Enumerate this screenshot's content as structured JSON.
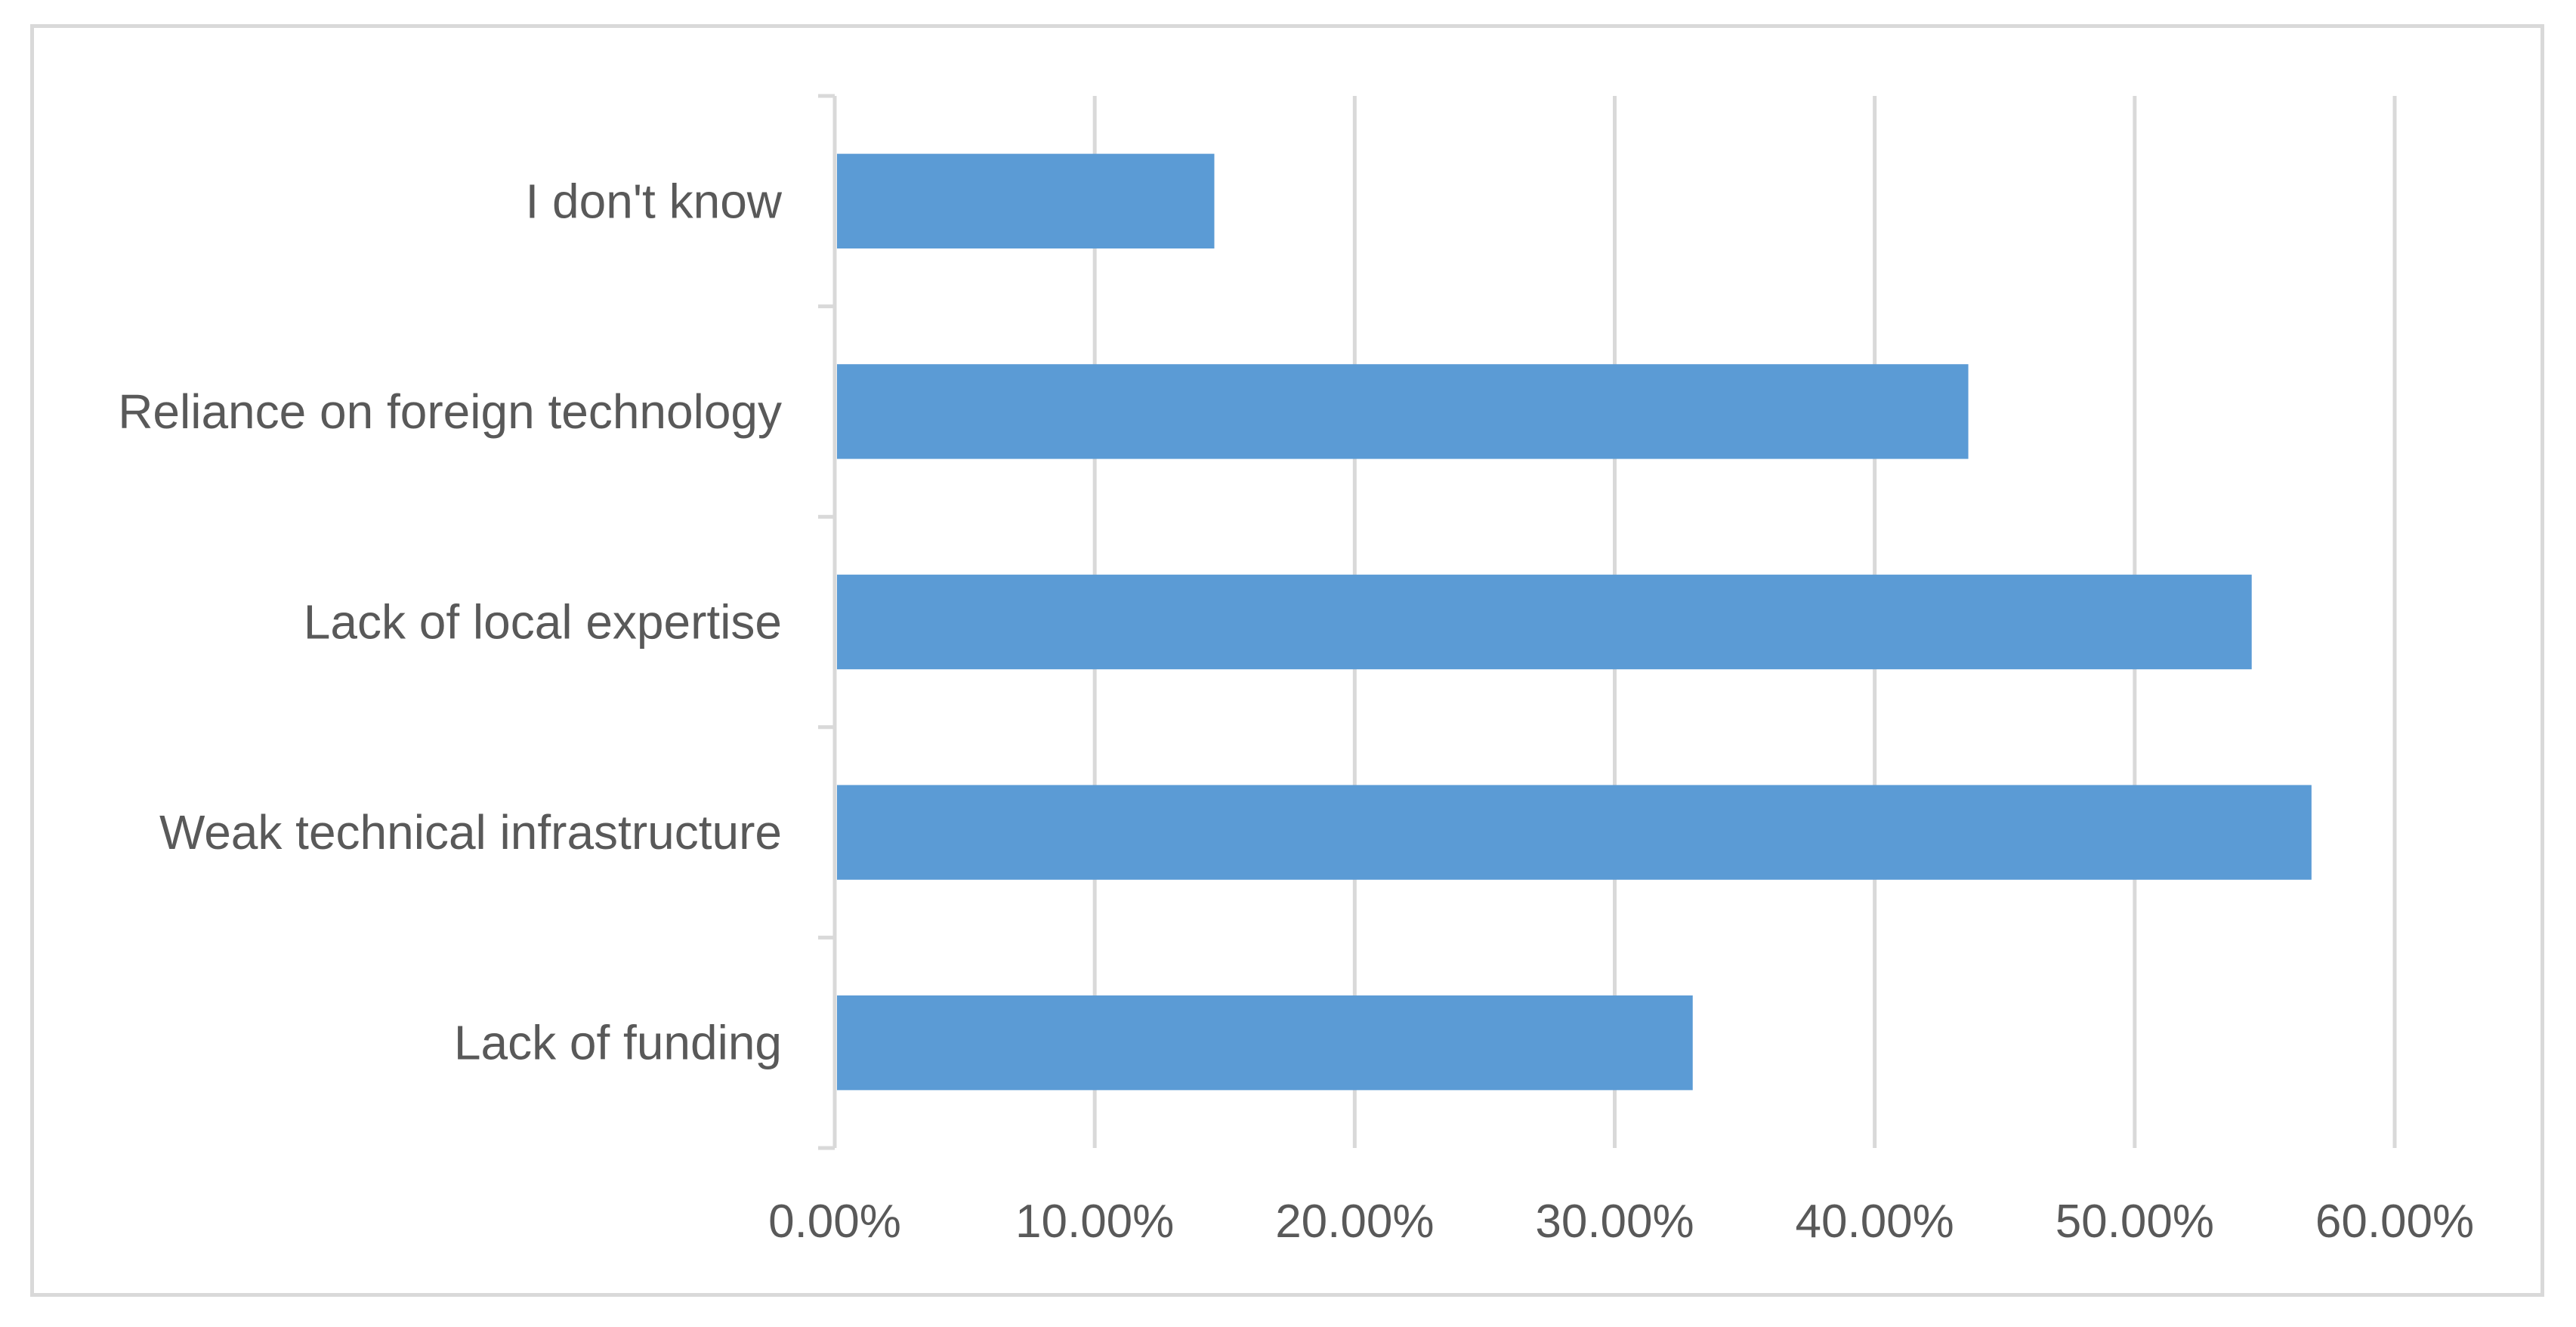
{
  "chart_data": {
    "type": "bar",
    "orientation": "horizontal",
    "categories": [
      "I don't know",
      "Reliance on foreign technology",
      "Lack of local expertise",
      "Weak technical infrastructure",
      "Lack of funding"
    ],
    "values": [
      14.6,
      43.6,
      54.5,
      56.8,
      33.0
    ],
    "value_format": "percent_2dp",
    "xlim": [
      0,
      60
    ],
    "x_ticks": [
      "0.00%",
      "10.00%",
      "20.00%",
      "30.00%",
      "40.00%",
      "50.00%",
      "60.00%"
    ],
    "title": "",
    "xlabel": "",
    "ylabel": "",
    "grid": "vertical",
    "legend": "none",
    "bar_color": "#5b9bd5",
    "grid_color": "#d9d9d9",
    "text_color": "#595959"
  }
}
